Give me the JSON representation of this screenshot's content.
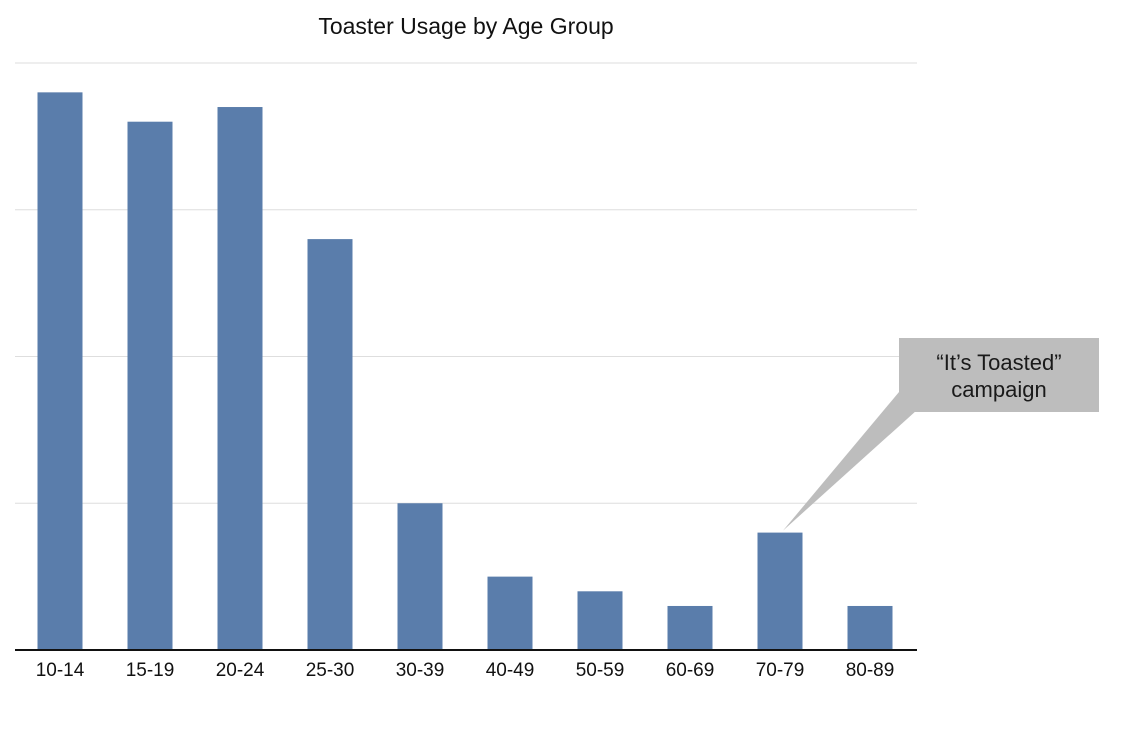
{
  "chart_data": {
    "type": "bar",
    "title": "Toaster Usage by Age Group",
    "xlabel": "",
    "ylabel": "",
    "categories": [
      "10-14",
      "15-19",
      "20-24",
      "25-30",
      "30-39",
      "40-49",
      "50-59",
      "60-69",
      "70-79",
      "80-89"
    ],
    "values": [
      95,
      90,
      92.5,
      70,
      25,
      12.5,
      10,
      7.5,
      20,
      7.5
    ],
    "ylim": [
      0,
      100
    ],
    "y_grid": [
      25,
      50,
      75,
      100
    ],
    "grid": true,
    "y_tick_labels_shown": false,
    "bar_color": "#5a7dab",
    "grid_color": "#dedede",
    "annotations": [
      {
        "category": "70-79",
        "lines": [
          "“It’s Toasted”",
          "campaign"
        ],
        "box_color": "#bdbdbd"
      }
    ]
  }
}
